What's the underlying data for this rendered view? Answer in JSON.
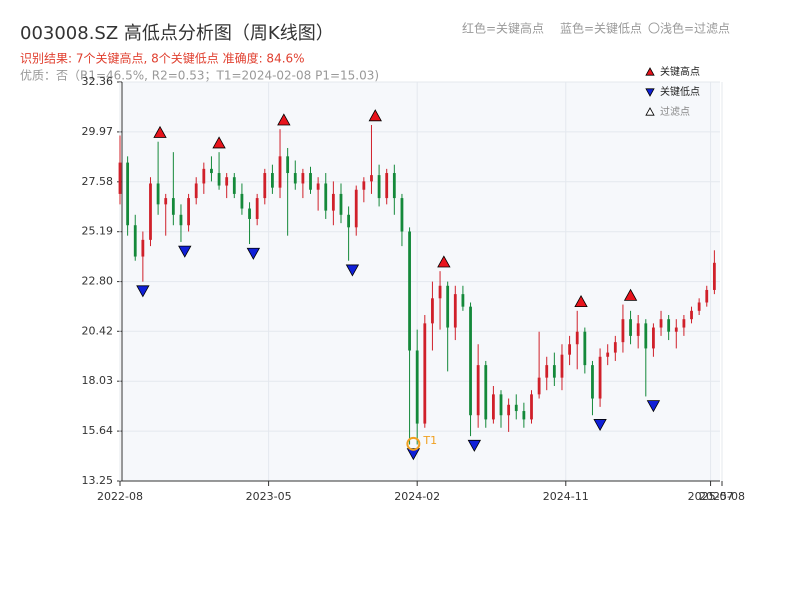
{
  "chart_data": {
    "type": "candlestick",
    "title": "003008.SZ 高低点分析图（周K线图）",
    "subtitle": "识别结果: 7个关键高点, 8个关键低点  准确度: 84.6%",
    "note": "优质：否（R1=46.5%, R2=0.53；T1=2024-02-08 P1=15.03)",
    "hint_high": "红色=关键高点",
    "hint_low": "蓝色=关键低点",
    "hint_filtered": "〇浅色=过滤点",
    "xlim": [
      0,
      158
    ],
    "xticks": [
      {
        "value": 0,
        "label": "2022-08"
      },
      {
        "value": 39,
        "label": "2023-05"
      },
      {
        "value": 78,
        "label": "2024-02"
      },
      {
        "value": 117,
        "label": "2024-11"
      },
      {
        "value": 155,
        "label": "2025-07"
      },
      {
        "value": 158,
        "label": "2025-08"
      }
    ],
    "ylim": [
      13.25,
      32.36
    ],
    "yticks": [
      13.25,
      15.64,
      18.03,
      20.42,
      {
        "value": 22.8,
        "label": "22.80"
      },
      25.19,
      27.58,
      29.97,
      32.36
    ],
    "grid": true,
    "up_color": "#d0202a",
    "down_color": "#14893a",
    "candles": {
      "x": [
        0,
        2,
        4,
        6,
        8,
        10,
        12,
        14,
        16,
        18,
        20,
        22,
        24,
        26,
        28,
        30,
        32,
        34,
        36,
        38,
        40,
        42,
        44,
        46,
        48,
        50,
        52,
        54,
        56,
        58,
        60,
        62,
        64,
        66,
        68,
        70,
        72,
        74,
        76,
        78,
        80,
        82,
        84,
        86,
        88,
        90,
        92,
        94,
        96,
        98,
        100,
        102,
        104,
        106,
        108,
        110,
        112,
        114,
        116,
        118,
        120,
        122,
        124,
        126,
        128,
        130,
        132,
        134,
        136,
        138,
        140,
        142,
        144,
        146,
        148,
        150,
        152,
        154,
        156
      ],
      "open": [
        27.0,
        28.5,
        25.5,
        24.0,
        24.8,
        27.5,
        26.5,
        26.8,
        26.0,
        25.5,
        26.8,
        27.5,
        28.2,
        28.0,
        27.4,
        27.8,
        27.0,
        26.3,
        25.8,
        26.8,
        28.0,
        27.3,
        28.8,
        28.0,
        27.5,
        28.0,
        27.2,
        27.5,
        26.2,
        27.0,
        26.0,
        25.4,
        27.2,
        27.6,
        27.9,
        26.8,
        28.0,
        26.8,
        25.2,
        19.5,
        16.0,
        20.8,
        22.0,
        22.6,
        20.6,
        22.2,
        21.6,
        16.4,
        18.8,
        16.2,
        17.4,
        16.4,
        16.9,
        16.6,
        16.2,
        17.4,
        18.2,
        18.8,
        18.2,
        19.3,
        19.8,
        20.4,
        18.8,
        17.2,
        19.2,
        19.4,
        19.9,
        21.0,
        20.2,
        20.8,
        19.6,
        20.6,
        21.0,
        20.4,
        20.6,
        21.0,
        21.4,
        21.8,
        22.4
      ],
      "high": [
        29.8,
        28.8,
        26.0,
        25.2,
        27.8,
        29.5,
        27.0,
        29.0,
        26.5,
        27.0,
        27.8,
        28.5,
        28.8,
        29.0,
        28.0,
        28.0,
        27.5,
        26.6,
        27.0,
        28.2,
        28.4,
        30.1,
        29.2,
        28.6,
        28.2,
        28.3,
        27.8,
        28.0,
        27.6,
        27.5,
        26.4,
        27.4,
        27.8,
        30.3,
        28.4,
        28.2,
        28.4,
        27.0,
        25.4,
        20.5,
        21.2,
        22.8,
        23.3,
        22.8,
        22.6,
        22.6,
        21.8,
        19.8,
        19.0,
        17.8,
        17.6,
        17.2,
        17.4,
        17.0,
        17.6,
        20.4,
        19.2,
        19.4,
        19.8,
        20.2,
        21.4,
        20.6,
        19.0,
        19.6,
        19.8,
        20.2,
        21.7,
        21.4,
        21.2,
        21.0,
        20.8,
        21.4,
        21.2,
        21.0,
        21.2,
        21.6,
        22.0,
        22.6,
        24.3
      ],
      "low": [
        26.5,
        25.0,
        23.8,
        22.8,
        24.5,
        26.0,
        25.0,
        25.5,
        24.7,
        25.2,
        26.5,
        27.0,
        27.6,
        27.2,
        26.8,
        26.8,
        26.0,
        24.6,
        25.5,
        26.5,
        27.0,
        26.8,
        25.0,
        27.2,
        26.8,
        27.0,
        26.2,
        25.8,
        25.5,
        25.6,
        23.8,
        25.0,
        26.6,
        27.0,
        26.4,
        26.5,
        26.0,
        24.5,
        15.0,
        15.0,
        15.8,
        19.5,
        20.5,
        18.5,
        20.0,
        21.4,
        15.4,
        15.8,
        15.8,
        16.0,
        15.8,
        15.6,
        16.2,
        15.8,
        16.0,
        17.2,
        17.6,
        17.8,
        17.6,
        18.8,
        18.6,
        18.4,
        16.4,
        16.8,
        18.8,
        19.0,
        19.4,
        19.8,
        19.6,
        17.3,
        19.2,
        20.2,
        20.0,
        19.6,
        20.2,
        20.8,
        21.2,
        21.6,
        22.2
      ],
      "close": [
        28.5,
        25.5,
        24.0,
        24.8,
        27.5,
        26.5,
        26.8,
        26.0,
        25.5,
        26.8,
        27.5,
        28.2,
        28.0,
        27.4,
        27.8,
        27.0,
        26.3,
        25.8,
        26.8,
        28.0,
        27.3,
        28.8,
        28.0,
        27.5,
        28.0,
        27.2,
        27.5,
        26.2,
        27.0,
        26.0,
        25.4,
        27.2,
        27.6,
        27.9,
        26.8,
        28.0,
        26.8,
        25.2,
        19.5,
        16.0,
        20.8,
        22.0,
        22.6,
        20.6,
        22.2,
        21.6,
        16.4,
        18.8,
        16.2,
        17.4,
        16.4,
        16.9,
        16.6,
        16.2,
        17.4,
        18.2,
        18.8,
        18.2,
        19.3,
        19.8,
        20.4,
        18.8,
        17.2,
        19.2,
        19.4,
        19.9,
        21.0,
        20.2,
        20.8,
        19.6,
        20.6,
        21.0,
        20.4,
        20.6,
        21.0,
        21.4,
        21.8,
        22.4,
        23.7
      ]
    },
    "markers": [
      {
        "name": "关键高点",
        "color": "#e8141c",
        "direction": "up",
        "x": [
          10.5,
          26,
          43,
          67,
          85,
          121,
          134
        ],
        "values": [
          29.5,
          29.0,
          30.1,
          30.3,
          23.3,
          21.4,
          21.7
        ]
      },
      {
        "name": "关键低点",
        "color": "#1020d8",
        "direction": "down",
        "x": [
          6,
          17,
          35,
          61,
          77,
          93,
          126,
          140
        ],
        "values": [
          22.8,
          24.7,
          24.6,
          23.8,
          15.0,
          15.4,
          16.4,
          17.3
        ]
      },
      {
        "name": "过滤点",
        "color": "#ffffff",
        "direction": "up",
        "x": [],
        "values": []
      }
    ],
    "t1": {
      "label": "T1",
      "x": 77,
      "value": 15.03,
      "color": "#f0a020"
    }
  }
}
